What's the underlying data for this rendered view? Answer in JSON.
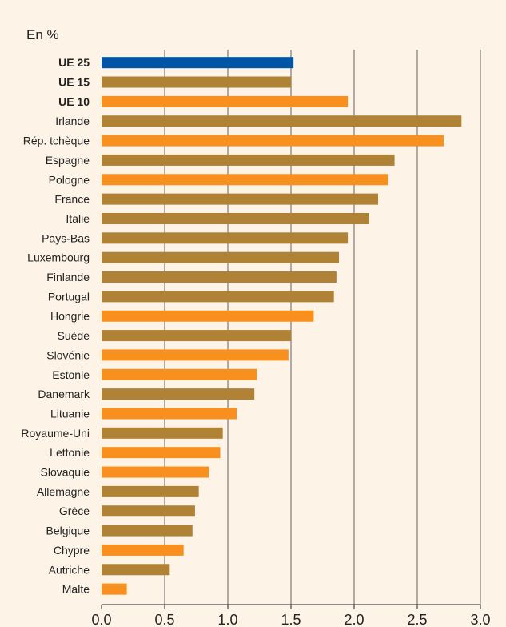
{
  "chart_data": {
    "type": "bar",
    "orientation": "horizontal",
    "unit_label": "En %",
    "categories": [
      "UE 25",
      "UE 15",
      "UE 10",
      "Irlande",
      "Rép. tchèque",
      "Espagne",
      "Pologne",
      "France",
      "Italie",
      "Pays-Bas",
      "Luxembourg",
      "Finlande",
      "Portugal",
      "Hongrie",
      "Suède",
      "Slovénie",
      "Estonie",
      "Danemark",
      "Lituanie",
      "Royaume-Uni",
      "Lettonie",
      "Slovaquie",
      "Allemagne",
      "Grèce",
      "Belgique",
      "Chypre",
      "Autriche",
      "Malte"
    ],
    "bold_categories": [
      "UE 25",
      "UE 15",
      "UE 10"
    ],
    "values": [
      1.52,
      1.5,
      1.95,
      2.85,
      2.71,
      2.32,
      2.27,
      2.19,
      2.12,
      1.95,
      1.88,
      1.86,
      1.84,
      1.68,
      1.5,
      1.48,
      1.23,
      1.21,
      1.07,
      0.96,
      0.94,
      0.85,
      0.77,
      0.74,
      0.72,
      0.65,
      0.54,
      0.2
    ],
    "groups": [
      "UE25",
      "UE15",
      "UE10",
      "UE15",
      "UE10",
      "UE15",
      "UE10",
      "UE15",
      "UE15",
      "UE15",
      "UE15",
      "UE15",
      "UE15",
      "UE10",
      "UE15",
      "UE10",
      "UE10",
      "UE15",
      "UE10",
      "UE15",
      "UE10",
      "UE10",
      "UE15",
      "UE15",
      "UE15",
      "UE10",
      "UE15",
      "UE10"
    ],
    "colors": {
      "UE25": "#0055a4",
      "UE15": "#b08236",
      "UE10": "#f7901e"
    },
    "xlim": [
      0,
      3.0
    ],
    "x_ticks": [
      "0.0",
      "0.5",
      "1.0",
      "1.5",
      "2.0",
      "2.5",
      "3.0"
    ],
    "grid": "vertical"
  }
}
